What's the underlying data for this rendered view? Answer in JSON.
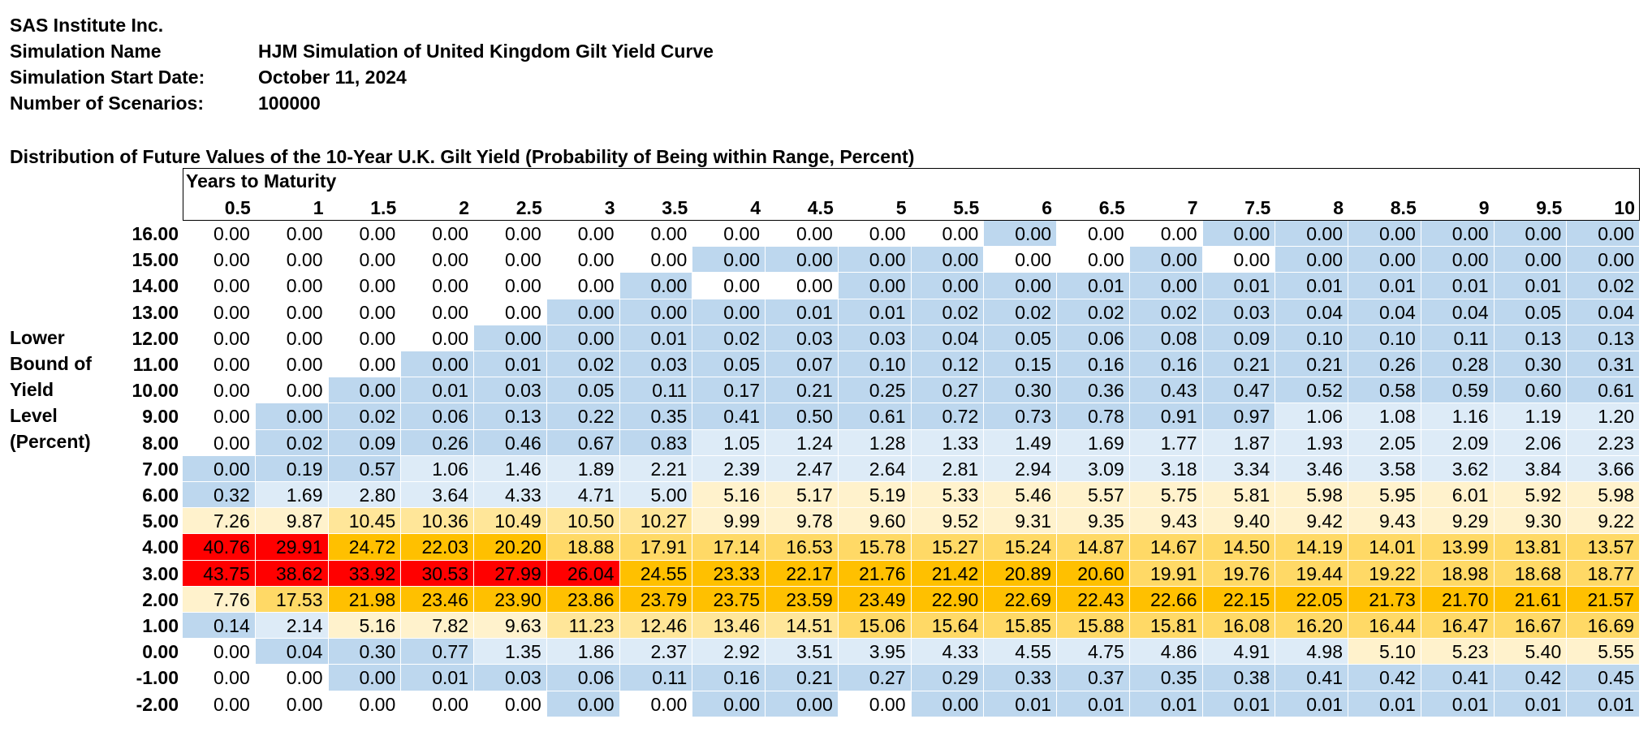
{
  "header": {
    "company": "SAS Institute Inc.",
    "sim_name_label": "Simulation Name",
    "sim_name_value": "HJM Simulation of United Kingdom Gilt Yield Curve",
    "start_date_label": "Simulation Start Date:",
    "start_date_value": "October 11, 2024",
    "scenarios_label": "Number of Scenarios:",
    "scenarios_value": "100000"
  },
  "table": {
    "title": "Distribution of Future Values of the 10-Year U.K. Gilt Yield (Probability of Being within Range, Percent)",
    "col_group_label": "Years to Maturity",
    "row_axis_label": [
      "Lower",
      "Bound of",
      "Yield",
      "Level",
      "(Percent)"
    ],
    "columns": [
      "0.5",
      "1",
      "1.5",
      "2",
      "2.5",
      "3",
      "3.5",
      "4",
      "4.5",
      "5",
      "5.5",
      "6",
      "6.5",
      "7",
      "7.5",
      "8",
      "8.5",
      "9",
      "9.5",
      "10"
    ],
    "rows": [
      {
        "label": "16.00",
        "values": [
          "0.00",
          "0.00",
          "0.00",
          "0.00",
          "0.00",
          "0.00",
          "0.00",
          "0.00",
          "0.00",
          "0.00",
          "0.00",
          "0.00",
          "0.00",
          "0.00",
          "0.00",
          "0.00",
          "0.00",
          "0.00",
          "0.00",
          "0.00"
        ],
        "colors": [
          "white",
          "white",
          "white",
          "white",
          "white",
          "white",
          "white",
          "white",
          "white",
          "white",
          "white",
          "blue",
          "white",
          "white",
          "blue",
          "blue",
          "blue",
          "blue",
          "blue",
          "blue"
        ]
      },
      {
        "label": "15.00",
        "values": [
          "0.00",
          "0.00",
          "0.00",
          "0.00",
          "0.00",
          "0.00",
          "0.00",
          "0.00",
          "0.00",
          "0.00",
          "0.00",
          "0.00",
          "0.00",
          "0.00",
          "0.00",
          "0.00",
          "0.00",
          "0.00",
          "0.00",
          "0.00"
        ],
        "colors": [
          "white",
          "white",
          "white",
          "white",
          "white",
          "white",
          "white",
          "blue",
          "blue",
          "blue",
          "blue",
          "white",
          "white",
          "blue",
          "white",
          "blue",
          "blue",
          "blue",
          "blue",
          "blue"
        ]
      },
      {
        "label": "14.00",
        "values": [
          "0.00",
          "0.00",
          "0.00",
          "0.00",
          "0.00",
          "0.00",
          "0.00",
          "0.00",
          "0.00",
          "0.00",
          "0.00",
          "0.00",
          "0.01",
          "0.00",
          "0.01",
          "0.01",
          "0.01",
          "0.01",
          "0.01",
          "0.02"
        ],
        "colors": [
          "white",
          "white",
          "white",
          "white",
          "white",
          "white",
          "blue",
          "white",
          "white",
          "blue",
          "blue",
          "blue",
          "blue",
          "blue",
          "blue",
          "blue",
          "blue",
          "blue",
          "blue",
          "blue"
        ]
      },
      {
        "label": "13.00",
        "values": [
          "0.00",
          "0.00",
          "0.00",
          "0.00",
          "0.00",
          "0.00",
          "0.00",
          "0.00",
          "0.01",
          "0.01",
          "0.02",
          "0.02",
          "0.02",
          "0.02",
          "0.03",
          "0.04",
          "0.04",
          "0.04",
          "0.05",
          "0.04"
        ],
        "colors": [
          "white",
          "white",
          "white",
          "white",
          "white",
          "blue",
          "blue",
          "blue",
          "blue",
          "blue",
          "blue",
          "blue",
          "blue",
          "blue",
          "blue",
          "blue",
          "blue",
          "blue",
          "blue",
          "blue"
        ]
      },
      {
        "label": "12.00",
        "values": [
          "0.00",
          "0.00",
          "0.00",
          "0.00",
          "0.00",
          "0.00",
          "0.01",
          "0.02",
          "0.03",
          "0.03",
          "0.04",
          "0.05",
          "0.06",
          "0.08",
          "0.09",
          "0.10",
          "0.10",
          "0.11",
          "0.13",
          "0.13"
        ],
        "colors": [
          "white",
          "white",
          "white",
          "white",
          "blue",
          "blue",
          "blue",
          "blue",
          "blue",
          "blue",
          "blue",
          "blue",
          "blue",
          "blue",
          "blue",
          "blue",
          "blue",
          "blue",
          "blue",
          "blue"
        ]
      },
      {
        "label": "11.00",
        "values": [
          "0.00",
          "0.00",
          "0.00",
          "0.00",
          "0.01",
          "0.02",
          "0.03",
          "0.05",
          "0.07",
          "0.10",
          "0.12",
          "0.15",
          "0.16",
          "0.16",
          "0.21",
          "0.21",
          "0.26",
          "0.28",
          "0.30",
          "0.31"
        ],
        "colors": [
          "white",
          "white",
          "white",
          "blue",
          "blue",
          "blue",
          "blue",
          "blue",
          "blue",
          "blue",
          "blue",
          "blue",
          "blue",
          "blue",
          "blue",
          "blue",
          "blue",
          "blue",
          "blue",
          "blue"
        ]
      },
      {
        "label": "10.00",
        "values": [
          "0.00",
          "0.00",
          "0.00",
          "0.01",
          "0.03",
          "0.05",
          "0.11",
          "0.17",
          "0.21",
          "0.25",
          "0.27",
          "0.30",
          "0.36",
          "0.43",
          "0.47",
          "0.52",
          "0.58",
          "0.59",
          "0.60",
          "0.61"
        ],
        "colors": [
          "white",
          "white",
          "blue",
          "blue",
          "blue",
          "blue",
          "blue",
          "blue",
          "blue",
          "blue",
          "blue",
          "blue",
          "blue",
          "blue",
          "blue",
          "blue",
          "blue",
          "blue",
          "blue",
          "blue"
        ]
      },
      {
        "label": "9.00",
        "values": [
          "0.00",
          "0.00",
          "0.02",
          "0.06",
          "0.13",
          "0.22",
          "0.35",
          "0.41",
          "0.50",
          "0.61",
          "0.72",
          "0.73",
          "0.78",
          "0.91",
          "0.97",
          "1.06",
          "1.08",
          "1.16",
          "1.19",
          "1.20"
        ],
        "colors": [
          "white",
          "blue",
          "blue",
          "blue",
          "blue",
          "blue",
          "blue",
          "blue",
          "blue",
          "blue",
          "blue",
          "blue",
          "blue",
          "blue",
          "blue",
          "lblue",
          "lblue",
          "lblue",
          "lblue",
          "lblue"
        ]
      },
      {
        "label": "8.00",
        "values": [
          "0.00",
          "0.02",
          "0.09",
          "0.26",
          "0.46",
          "0.67",
          "0.83",
          "1.05",
          "1.24",
          "1.28",
          "1.33",
          "1.49",
          "1.69",
          "1.77",
          "1.87",
          "1.93",
          "2.05",
          "2.09",
          "2.06",
          "2.23"
        ],
        "colors": [
          "white",
          "blue",
          "blue",
          "blue",
          "blue",
          "blue",
          "blue",
          "lblue",
          "lblue",
          "lblue",
          "lblue",
          "lblue",
          "lblue",
          "lblue",
          "lblue",
          "lblue",
          "lblue",
          "lblue",
          "lblue",
          "lblue"
        ]
      },
      {
        "label": "7.00",
        "values": [
          "0.00",
          "0.19",
          "0.57",
          "1.06",
          "1.46",
          "1.89",
          "2.21",
          "2.39",
          "2.47",
          "2.64",
          "2.81",
          "2.94",
          "3.09",
          "3.18",
          "3.34",
          "3.46",
          "3.58",
          "3.62",
          "3.84",
          "3.66"
        ],
        "colors": [
          "blue",
          "blue",
          "blue",
          "lblue",
          "lblue",
          "lblue",
          "lblue",
          "lblue",
          "lblue",
          "lblue",
          "lblue",
          "lblue",
          "lblue",
          "lblue",
          "lblue",
          "lblue",
          "lblue",
          "lblue",
          "lblue",
          "lblue"
        ]
      },
      {
        "label": "6.00",
        "values": [
          "0.32",
          "1.69",
          "2.80",
          "3.64",
          "4.33",
          "4.71",
          "5.00",
          "5.16",
          "5.17",
          "5.19",
          "5.33",
          "5.46",
          "5.57",
          "5.75",
          "5.81",
          "5.98",
          "5.95",
          "6.01",
          "5.92",
          "5.98"
        ],
        "colors": [
          "blue",
          "lblue",
          "lblue",
          "lblue",
          "lblue",
          "lblue",
          "lblue",
          "lyel",
          "lyel",
          "lyel",
          "lyel",
          "lyel",
          "lyel",
          "lyel",
          "lyel",
          "lyel",
          "lyel",
          "lyel",
          "lyel",
          "lyel"
        ]
      },
      {
        "label": "5.00",
        "values": [
          "7.26",
          "9.87",
          "10.45",
          "10.36",
          "10.49",
          "10.50",
          "10.27",
          "9.99",
          "9.78",
          "9.60",
          "9.52",
          "9.31",
          "9.35",
          "9.43",
          "9.40",
          "9.42",
          "9.43",
          "9.29",
          "9.30",
          "9.22"
        ],
        "colors": [
          "lyel",
          "lyel",
          "yel",
          "yel",
          "yel",
          "yel",
          "yel",
          "lyel",
          "lyel",
          "lyel",
          "lyel",
          "lyel",
          "lyel",
          "lyel",
          "lyel",
          "lyel",
          "lyel",
          "lyel",
          "lyel",
          "lyel"
        ]
      },
      {
        "label": "4.00",
        "values": [
          "40.76",
          "29.91",
          "24.72",
          "22.03",
          "20.20",
          "18.88",
          "17.91",
          "17.14",
          "16.53",
          "15.78",
          "15.27",
          "15.24",
          "14.87",
          "14.67",
          "14.50",
          "14.19",
          "14.01",
          "13.99",
          "13.81",
          "13.57"
        ],
        "colors": [
          "red",
          "red",
          "org",
          "org",
          "org",
          "gold",
          "gold",
          "gold",
          "gold",
          "gold",
          "gold",
          "gold",
          "gold",
          "gold",
          "gold",
          "gold",
          "gold",
          "gold",
          "gold",
          "gold"
        ]
      },
      {
        "label": "3.00",
        "values": [
          "43.75",
          "38.62",
          "33.92",
          "30.53",
          "27.99",
          "26.04",
          "24.55",
          "23.33",
          "22.17",
          "21.76",
          "21.42",
          "20.89",
          "20.60",
          "19.91",
          "19.76",
          "19.44",
          "19.22",
          "18.98",
          "18.68",
          "18.77"
        ],
        "colors": [
          "red",
          "red",
          "red",
          "red",
          "red",
          "red",
          "org",
          "org",
          "org",
          "org",
          "org",
          "org",
          "org",
          "gold",
          "gold",
          "gold",
          "gold",
          "gold",
          "gold",
          "gold"
        ]
      },
      {
        "label": "2.00",
        "values": [
          "7.76",
          "17.53",
          "21.98",
          "23.46",
          "23.90",
          "23.86",
          "23.79",
          "23.75",
          "23.59",
          "23.49",
          "22.90",
          "22.69",
          "22.43",
          "22.66",
          "22.15",
          "22.05",
          "21.73",
          "21.70",
          "21.61",
          "21.57"
        ],
        "colors": [
          "lyel",
          "gold",
          "org",
          "org",
          "org",
          "org",
          "org",
          "org",
          "org",
          "org",
          "org",
          "org",
          "org",
          "org",
          "org",
          "org",
          "org",
          "org",
          "org",
          "org"
        ]
      },
      {
        "label": "1.00",
        "values": [
          "0.14",
          "2.14",
          "5.16",
          "7.82",
          "9.63",
          "11.23",
          "12.46",
          "13.46",
          "14.51",
          "15.06",
          "15.64",
          "15.85",
          "15.88",
          "15.81",
          "16.08",
          "16.20",
          "16.44",
          "16.47",
          "16.67",
          "16.69"
        ],
        "colors": [
          "blue",
          "lblue",
          "lyel",
          "lyel",
          "lyel",
          "yel",
          "yel",
          "yel",
          "yel",
          "gold",
          "gold",
          "gold",
          "gold",
          "gold",
          "gold",
          "gold",
          "gold",
          "gold",
          "gold",
          "gold"
        ]
      },
      {
        "label": "0.00",
        "values": [
          "0.00",
          "0.04",
          "0.30",
          "0.77",
          "1.35",
          "1.86",
          "2.37",
          "2.92",
          "3.51",
          "3.95",
          "4.33",
          "4.55",
          "4.75",
          "4.86",
          "4.91",
          "4.98",
          "5.10",
          "5.23",
          "5.40",
          "5.55"
        ],
        "colors": [
          "white",
          "blue",
          "blue",
          "blue",
          "lblue",
          "lblue",
          "lblue",
          "lblue",
          "lblue",
          "lblue",
          "lblue",
          "lblue",
          "lblue",
          "lblue",
          "lblue",
          "lblue",
          "lyel",
          "lyel",
          "lyel",
          "lyel"
        ]
      },
      {
        "label": "-1.00",
        "values": [
          "0.00",
          "0.00",
          "0.00",
          "0.01",
          "0.03",
          "0.06",
          "0.11",
          "0.16",
          "0.21",
          "0.27",
          "0.29",
          "0.33",
          "0.37",
          "0.35",
          "0.38",
          "0.41",
          "0.42",
          "0.41",
          "0.42",
          "0.45"
        ],
        "colors": [
          "white",
          "white",
          "blue",
          "blue",
          "blue",
          "blue",
          "blue",
          "blue",
          "blue",
          "blue",
          "blue",
          "blue",
          "blue",
          "blue",
          "blue",
          "blue",
          "blue",
          "blue",
          "blue",
          "blue"
        ]
      },
      {
        "label": "-2.00",
        "values": [
          "0.00",
          "0.00",
          "0.00",
          "0.00",
          "0.00",
          "0.00",
          "0.00",
          "0.00",
          "0.00",
          "0.00",
          "0.00",
          "0.01",
          "0.01",
          "0.01",
          "0.01",
          "0.01",
          "0.01",
          "0.01",
          "0.01",
          "0.01"
        ],
        "colors": [
          "white",
          "white",
          "white",
          "white",
          "white",
          "blue",
          "white",
          "blue",
          "blue",
          "white",
          "blue",
          "blue",
          "blue",
          "blue",
          "blue",
          "blue",
          "blue",
          "blue",
          "blue",
          "blue"
        ]
      }
    ]
  }
}
